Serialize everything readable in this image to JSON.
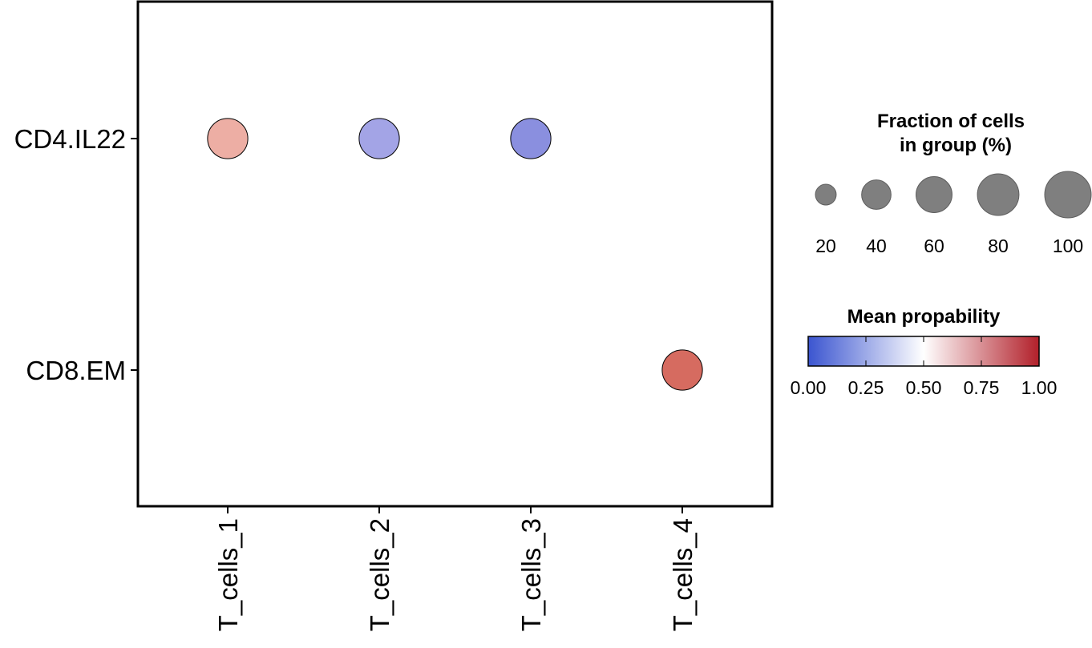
{
  "chart_data": {
    "type": "scatter",
    "subtype": "dot plot",
    "x_categories": [
      "T_cells_1",
      "T_cells_2",
      "T_cells_3",
      "T_cells_4"
    ],
    "y_categories": [
      "CD4.IL22",
      "CD8.EM"
    ],
    "points": [
      {
        "x": "T_cells_1",
        "y": "CD4.IL22",
        "fraction": 75,
        "mean": 0.68,
        "color": "#EDAEA4"
      },
      {
        "x": "T_cells_2",
        "y": "CD4.IL22",
        "fraction": 75,
        "mean": 0.3,
        "color": "#A3A4E6"
      },
      {
        "x": "T_cells_3",
        "y": "CD4.IL22",
        "fraction": 75,
        "mean": 0.17,
        "color": "#8A8FDF"
      },
      {
        "x": "T_cells_4",
        "y": "CD8.EM",
        "fraction": 75,
        "mean": 0.86,
        "color": "#D66B60"
      }
    ],
    "size_legend": {
      "title_line1": "Fraction of cells",
      "title_line2": "in group (%)",
      "values": [
        20,
        40,
        60,
        80,
        100
      ],
      "labels": [
        "20",
        "40",
        "60",
        "80",
        "100"
      ],
      "color": "#7F7F7F"
    },
    "color_legend": {
      "title": "Mean propability",
      "ticks": [
        0.0,
        0.25,
        0.5,
        0.75,
        1.0
      ],
      "tick_labels": [
        "0.00",
        "0.25",
        "0.50",
        "0.75",
        "1.00"
      ],
      "low_color": "#3B55D0",
      "mid_color": "#FFFFFF",
      "high_color": "#B2202A",
      "range": [
        0,
        1
      ]
    },
    "grid": false,
    "legend_position": "right"
  }
}
